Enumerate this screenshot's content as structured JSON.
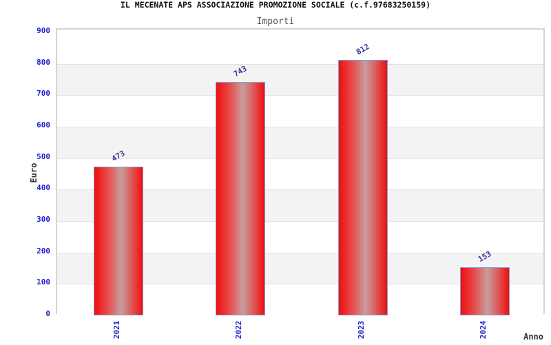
{
  "header": {
    "title": "IL MECENATE APS ASSOCIAZIONE PROMOZIONE SOCIALE (c.f.97683250159)",
    "subtitle": "Importi"
  },
  "chart_data": {
    "type": "bar",
    "title": "IL MECENATE APS ASSOCIAZIONE PROMOZIONE SOCIALE (c.f.97683250159)",
    "subtitle": "Importi",
    "categories": [
      "2021",
      "2022",
      "2023",
      "2024"
    ],
    "values": [
      473,
      743,
      812,
      153
    ],
    "xlabel": "Anno",
    "ylabel": "Euro",
    "ylim": [
      0,
      900
    ],
    "ytick_step": 100,
    "yticks": [
      0,
      100,
      200,
      300,
      400,
      500,
      600,
      700,
      800,
      900
    ],
    "grid": true,
    "legend": "none",
    "bar_value_labels_rotated_deg": -30,
    "xtick_labels_rotated_deg": -90,
    "style": {
      "band_color_even": "#ffffff",
      "band_color_odd": "#f3f3f3",
      "gridline_color": "#e2e2e2",
      "plot_border_color": "#d4d4d4",
      "bar_fill_red": "#ee0f0f",
      "bar_fill_highlight": "#c79d9d",
      "bar_border_color": "#7aa4da",
      "tick_label_color": "#2020d0",
      "value_label_color": "#3a3a9c",
      "axis_title_color": "#333333",
      "title_color": "#111111",
      "subtitle_color": "#555555"
    }
  }
}
